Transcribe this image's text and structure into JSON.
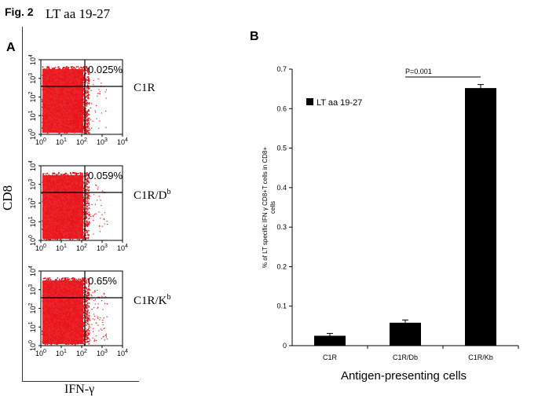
{
  "figure": {
    "label": "Fig. 2",
    "peptide": "LT aa 19-27",
    "panel_a_label": "A",
    "panel_b_label": "B"
  },
  "panel_a": {
    "y_axis_label": "CD8",
    "x_axis_label": "IFN-γ",
    "tick_base": "10",
    "tick_exponents": [
      "0",
      "1",
      "2",
      "3",
      "4"
    ],
    "plots": [
      {
        "cell_line": "C1R",
        "superscript": "",
        "percent": "0.025%",
        "upper_right_fraction": 0.00025
      },
      {
        "cell_line": "C1R/D",
        "superscript": "b",
        "percent": "0.059%",
        "upper_right_fraction": 0.00059
      },
      {
        "cell_line": "C1R/K",
        "superscript": "b",
        "percent": "0.65%",
        "upper_right_fraction": 0.0065
      }
    ],
    "dot_color": "#e8141b"
  },
  "chart_data": {
    "type": "bar",
    "categories": [
      "C1R",
      "C1R/Db",
      "C1R/Kb"
    ],
    "series": [
      {
        "name": "LT aa 19-27",
        "values": [
          0.025,
          0.058,
          0.652
        ],
        "errors": [
          0.006,
          0.007,
          0.009
        ],
        "color": "#000000"
      }
    ],
    "yticks": [
      "0",
      "0.1",
      "0.2",
      "0.3",
      "0.4",
      "0.5",
      "0.6",
      "0.7"
    ],
    "ylim": [
      0,
      0.7
    ],
    "ylabel_line1": "% of LT specific  IFN γ CD8+T cells in CD8+",
    "ylabel_line2": "cells",
    "xlabel": "Antigen-presenting cells",
    "legend_position": "upper-left",
    "annotation": {
      "text": "P=0.001",
      "from_category": "C1R/Db",
      "to_category": "C1R/Kb"
    },
    "grid": false
  }
}
